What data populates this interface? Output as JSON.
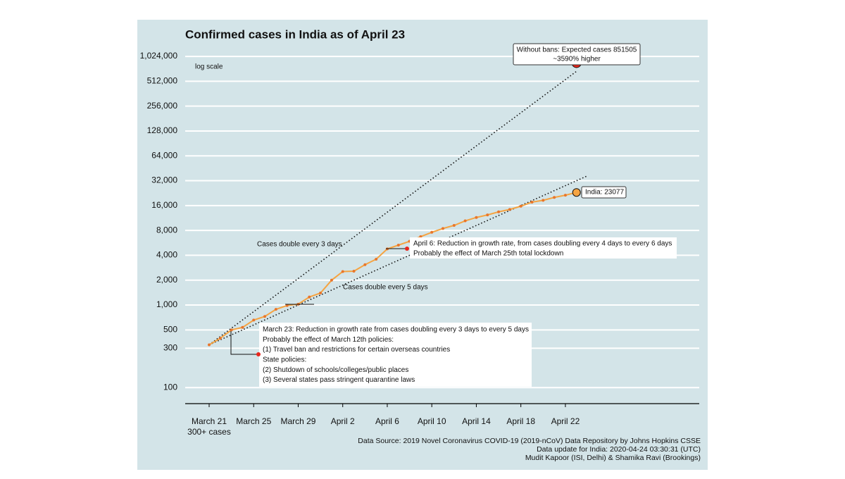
{
  "chart_data": {
    "type": "line",
    "title": "Confirmed cases in India as of April 23",
    "scale_note": "log scale",
    "log_scale": true,
    "grid": true,
    "categories": [
      "March 21",
      null,
      null,
      null,
      "March 25",
      null,
      null,
      null,
      "March 29",
      null,
      null,
      null,
      "April 2",
      null,
      null,
      null,
      "April 6",
      null,
      null,
      null,
      "April 10",
      null,
      null,
      null,
      "April 14",
      null,
      null,
      null,
      "April 18",
      null,
      null,
      null,
      "April 22",
      null
    ],
    "first_category_note": "300+ cases",
    "series": [
      {
        "color": "#f5a442",
        "values": [
          330,
          396,
          499,
          536,
          657,
          727,
          887,
          987,
          1024,
          1251,
          1397,
          1998,
          2543,
          2567,
          3082,
          3588,
          4778,
          5311,
          5916,
          6725,
          7598,
          8446,
          9205,
          10453,
          11487,
          12322,
          13430,
          14352,
          15722,
          17615,
          18539,
          20080,
          21370,
          23077
        ]
      }
    ],
    "last_label": "India: 23077",
    "reference_lines": [
      {
        "label": "Cases double every 3 days",
        "doubling_days": 3
      },
      {
        "label": "Cases double every 5 days",
        "doubling_days": 5
      }
    ],
    "projection": {
      "value": 851505,
      "label": "Without bans: Expected cases 851505",
      "note": "~3590% higher",
      "color": "#e8261c"
    },
    "annotations": [
      {
        "lines": [
          "April 6: Reduction in growth rate, from cases doubling every 4 days to every 6 days",
          "Probably the effect of March 25th total lockdown"
        ]
      },
      {
        "lines": [
          "March 23: Reduction in growth rate from cases doubling every 3 days to every 5 days",
          "Probably the effect of March 12th policies:",
          "(1) Travel ban and restrictions for certain overseas countries",
          "State policies:",
          "(2) Shutdown of schools/colleges/public places",
          "(3) Several states pass stringent quarantine laws"
        ]
      }
    ],
    "ylim": [
      64,
      1200000
    ],
    "yticks": [
      100,
      300,
      500,
      {
        "value": 1000,
        "label": "1,000"
      },
      {
        "value": 2000,
        "label": "2,000"
      },
      {
        "value": 4000,
        "label": "4,000"
      },
      {
        "value": 8000,
        "label": "8,000"
      },
      {
        "value": 16000,
        "label": "16,000"
      },
      {
        "value": 32000,
        "label": "32,000"
      },
      {
        "value": 64000,
        "label": "64,000"
      },
      {
        "value": 128000,
        "label": "128,000"
      },
      {
        "value": 256000,
        "label": "256,000"
      },
      {
        "value": 512000,
        "label": "512,000"
      },
      {
        "value": 1024000,
        "label": "1,024,000"
      }
    ],
    "source": [
      "Data Source: 2019 Novel Coronavirus COVID-19 (2019-nCoV) Data Repository by Johns Hopkins CSSE",
      "Data update for India: 2020-04-24 03:30:31 (UTC)",
      "Mudit Kapoor (ISI, Delhi) & Shamika Ravi (Brookings)"
    ]
  }
}
